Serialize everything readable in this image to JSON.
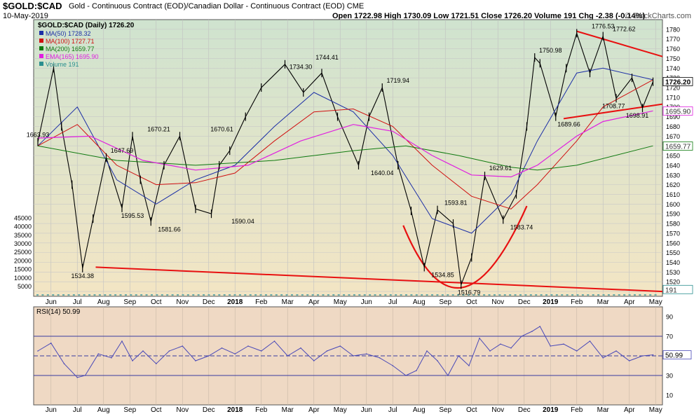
{
  "header": {
    "symbol": "$GOLD:$CAD",
    "description": "Gold - Continuous Contract (EOD)/Canadian Dollar - Continuous Contract (EOD) CME",
    "date": "10-May-2019",
    "ohlc": "Open 1722.98 High 1730.09 Low 1721.51 Close 1726.20 Volume 191 Chg -2.38 (-0.14%)",
    "brand": "© StockCharts.com"
  },
  "colors": {
    "bg_top": "#cfe3cf",
    "bg_bottom": "#f3e5c4",
    "price": "#000000",
    "ma50": "#1c2fa6",
    "ma100": "#d01010",
    "ma200": "#0f7a0f",
    "ema165": "#e020e0",
    "trendline": "#e81010",
    "rsi_line": "#4a4ab8",
    "rsi_bg": "#efd9c4"
  },
  "chart_data": [
    {
      "type": "line",
      "title": "$GOLD:$CAD (Daily) 1726.20",
      "x": [
        "Jun",
        "Jul",
        "Aug",
        "Sep",
        "Oct",
        "Nov",
        "Dec",
        "2018",
        "Feb",
        "Mar",
        "Apr",
        "May",
        "Jun",
        "Jul",
        "Aug",
        "Sep",
        "Oct",
        "Nov",
        "Dec",
        "2019",
        "Feb",
        "Mar",
        "Apr",
        "May"
      ],
      "ylim": [
        1505,
        1790
      ],
      "y_ticks": [
        1510,
        1520,
        1530,
        1540,
        1550,
        1560,
        1570,
        1580,
        1590,
        1600,
        1610,
        1620,
        1630,
        1640,
        1650,
        1660,
        1670,
        1680,
        1690,
        1700,
        1710,
        1720,
        1730,
        1740,
        1750,
        1760,
        1770,
        1780
      ],
      "volume_ticks": [
        "5000",
        "10000",
        "15000",
        "20000",
        "25000",
        "30000",
        "35000",
        "40000",
        "45000"
      ],
      "legend": [
        {
          "label": "$GOLD:$CAD (Daily) 1726.20",
          "color": "#000000"
        },
        {
          "label": "MA(50) 1728.32",
          "color": "#1c2fa6"
        },
        {
          "label": "MA(100) 1727.71",
          "color": "#d01010"
        },
        {
          "label": "MA(200) 1659.77",
          "color": "#0f7a0f"
        },
        {
          "label": "EMA(165) 1695.90",
          "color": "#e020e0"
        },
        {
          "label": "Volume 191",
          "color": "#2a8f8f"
        }
      ],
      "series": [
        {
          "name": "$GOLD:$CAD",
          "x": [
            0.0,
            0.6,
            0.9,
            1.3,
            1.7,
            2.1,
            2.6,
            3.2,
            3.6,
            3.9,
            4.3,
            4.8,
            5.4,
            6.0,
            6.6,
            6.9,
            7.3,
            7.9,
            8.5,
            9.4,
            10.1,
            10.8,
            11.4,
            12.2,
            12.6,
            13.1,
            13.7,
            14.2,
            14.7,
            15.2,
            15.8,
            16.1,
            16.5,
            17.0,
            17.7,
            18.2,
            18.6,
            18.9,
            19.1,
            19.7,
            20.1,
            20.5,
            21.0,
            21.5,
            22.0,
            22.6,
            23.0,
            23.4
          ],
          "values": [
            1664,
            1740,
            1680,
            1620,
            1534,
            1585,
            1648,
            1596,
            1670,
            1625,
            1582,
            1640,
            1670,
            1595,
            1590,
            1640,
            1655,
            1690,
            1720,
            1744,
            1715,
            1735,
            1690,
            1640,
            1690,
            1720,
            1640,
            1593,
            1535,
            1594,
            1580,
            1517,
            1545,
            1629,
            1584,
            1610,
            1680,
            1751,
            1745,
            1690,
            1740,
            1776,
            1735,
            1773,
            1709,
            1730,
            1699,
            1726
          ]
        },
        {
          "name": "MA(50)",
          "x": [
            0,
            1.5,
            3,
            4.5,
            6,
            7.5,
            9,
            10.5,
            12,
            13.5,
            15,
            16.5,
            18,
            19,
            20.5,
            21.5,
            23.4
          ],
          "values": [
            1660,
            1700,
            1625,
            1600,
            1625,
            1640,
            1680,
            1715,
            1695,
            1650,
            1585,
            1570,
            1610,
            1665,
            1735,
            1740,
            1728
          ]
        },
        {
          "name": "MA(100)",
          "x": [
            0,
            1.5,
            3,
            4.5,
            6,
            7.5,
            9,
            10.5,
            12,
            13.5,
            15,
            16.5,
            18,
            19,
            20.5,
            21.5,
            23.4
          ],
          "values": [
            1660,
            1682,
            1640,
            1620,
            1622,
            1632,
            1665,
            1695,
            1698,
            1680,
            1640,
            1608,
            1595,
            1620,
            1665,
            1700,
            1728
          ]
        },
        {
          "name": "MA(200)",
          "x": [
            0,
            3,
            6,
            9,
            12,
            14,
            16,
            18,
            19,
            20.5,
            23.4
          ],
          "values": [
            1660,
            1645,
            1640,
            1645,
            1655,
            1660,
            1650,
            1638,
            1635,
            1640,
            1660
          ]
        },
        {
          "name": "EMA(165)",
          "x": [
            0,
            2,
            4,
            6,
            8,
            10,
            12,
            13.5,
            15,
            16.5,
            18,
            19,
            20.5,
            21.5,
            23.4
          ],
          "values": [
            1668,
            1670,
            1645,
            1635,
            1640,
            1665,
            1682,
            1675,
            1650,
            1630,
            1628,
            1640,
            1670,
            1685,
            1696
          ]
        }
      ],
      "annotations": [
        "1663.93",
        "1647.69",
        "1595.53",
        "1534.38",
        "1670.21",
        "1581.66",
        "1670.61",
        "1590.04",
        "1734.30",
        "1744.41",
        "1640.04",
        "1719.94",
        "1593.81",
        "1534.85",
        "1516.79",
        "1629.61",
        "1583.74",
        "1750.98",
        "1689.66",
        "1776.53",
        "1772.62",
        "1708.77",
        "1698.91"
      ],
      "last_value_labels": [
        "1726.20",
        "1695.90",
        "1659.77",
        "191"
      ]
    },
    {
      "type": "line",
      "title": "RSI(14) 50.99",
      "ylim": [
        0,
        100
      ],
      "y_ticks": [
        10,
        30,
        50,
        70,
        90
      ],
      "reference_lines": [
        30,
        50,
        70
      ],
      "last_value_label": "50.99",
      "series": [
        {
          "name": "RSI(14)",
          "x": [
            0,
            0.5,
            1.0,
            1.5,
            1.8,
            2.3,
            2.8,
            3.2,
            3.6,
            4.0,
            4.5,
            5.0,
            5.5,
            6.0,
            6.5,
            7.0,
            7.5,
            8.0,
            8.5,
            9.0,
            9.5,
            10.0,
            10.5,
            11.0,
            11.5,
            12.0,
            12.5,
            13.0,
            13.5,
            14.0,
            14.4,
            14.8,
            15.2,
            15.6,
            16.0,
            16.4,
            16.8,
            17.2,
            17.6,
            18.0,
            18.4,
            18.8,
            19.1,
            19.5,
            20.0,
            20.5,
            21.0,
            21.5,
            22.0,
            22.5,
            23.0,
            23.4
          ],
          "values": [
            55,
            63,
            42,
            28,
            30,
            52,
            48,
            65,
            45,
            55,
            42,
            55,
            60,
            45,
            50,
            58,
            52,
            60,
            55,
            65,
            50,
            58,
            45,
            55,
            60,
            50,
            52,
            48,
            40,
            30,
            35,
            55,
            45,
            30,
            50,
            40,
            68,
            55,
            62,
            58,
            70,
            75,
            80,
            60,
            62,
            55,
            65,
            48,
            55,
            45,
            50,
            51
          ]
        }
      ]
    }
  ]
}
